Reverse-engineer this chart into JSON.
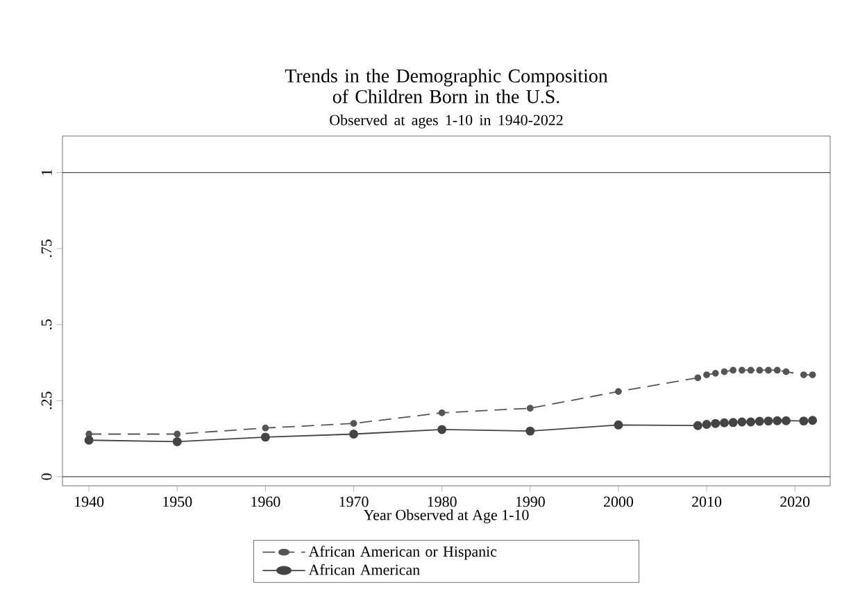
{
  "chart_data": {
    "type": "line",
    "title": "Trends in the Demographic Composition of Children Born in the U.S.",
    "subtitle": "Observed at ages 1-10 in 1940-2022",
    "xlabel": "Year Observed at Age 1-10",
    "x": [
      1940,
      1950,
      1960,
      1970,
      1980,
      1990,
      2000,
      2009,
      2010,
      2011,
      2012,
      2013,
      2014,
      2015,
      2016,
      2017,
      2018,
      2019,
      2021,
      2022
    ],
    "series": [
      {
        "name": "African American or Hispanic",
        "color": "#555555",
        "line_style": "dashed",
        "values": [
          0.14,
          0.14,
          0.16,
          0.175,
          0.21,
          0.225,
          0.28,
          0.325,
          0.335,
          0.34,
          0.345,
          0.35,
          0.35,
          0.35,
          0.35,
          0.35,
          0.35,
          0.345,
          0.335,
          0.335
        ]
      },
      {
        "name": "African American",
        "color": "#444444",
        "line_style": "solid",
        "values": [
          0.12,
          0.115,
          0.13,
          0.14,
          0.155,
          0.15,
          0.17,
          0.168,
          0.172,
          0.175,
          0.177,
          0.178,
          0.18,
          0.18,
          0.182,
          0.183,
          0.184,
          0.184,
          0.183,
          0.185
        ]
      }
    ],
    "xlim": [
      1937,
      2024
    ],
    "ylim": [
      -0.03,
      1.12
    ],
    "xticks": [
      1940,
      1950,
      1960,
      1970,
      1980,
      1990,
      2000,
      2010,
      2020
    ],
    "yticks": [
      0,
      {
        "value": 0.25,
        "label": ".25"
      },
      {
        "value": 0.5,
        "label": ".5"
      },
      {
        "value": 0.75,
        "label": ".75"
      },
      1
    ],
    "ref_lines": [
      {
        "axis": "y",
        "value": 0
      },
      {
        "axis": "y",
        "value": 1
      }
    ],
    "marker": "circle",
    "legend": "bottom",
    "grid": false
  }
}
